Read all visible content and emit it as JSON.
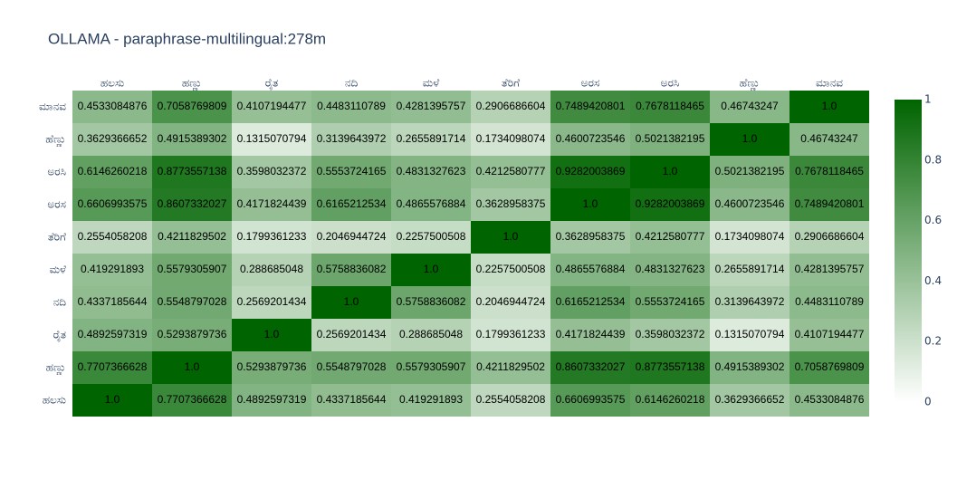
{
  "chart_data": {
    "type": "heatmap",
    "title": "OLLAMA - paraphrase-multilingual:278m",
    "x": [
      "ಹಲಸು",
      "ಹಣ್ಣು",
      "ರೈತ",
      "ನದಿ",
      "ಮಳೆ",
      "ತೆರಿಗೆ",
      "ಅರಸ",
      "ಅರಸಿ",
      "ಹೆಣ್ಣು",
      "ಮಾನವ"
    ],
    "y": [
      "ಹಲಸು",
      "ಹಣ್ಣು",
      "ರೈತ",
      "ನದಿ",
      "ಮಳೆ",
      "ತೆರಿಗೆ",
      "ಅರಸ",
      "ಅರಸಿ",
      "ಹೆಣ್ಣು",
      "ಮಾನವ"
    ],
    "z": [
      [
        1,
        0.7707366628,
        0.4892597319,
        0.4337185644,
        0.419291893,
        0.2554058208,
        0.6606993575,
        0.6146260218,
        0.3629366652,
        0.4533084876
      ],
      [
        0.7707366628,
        1,
        0.5293879736,
        0.5548797028,
        0.5579305907,
        0.4211829502,
        0.8607332027,
        0.8773557138,
        0.4915389302,
        0.7058769809
      ],
      [
        0.4892597319,
        0.5293879736,
        1,
        0.2569201434,
        0.288685048,
        0.1799361233,
        0.4171824439,
        0.3598032372,
        0.1315070794,
        0.4107194477
      ],
      [
        0.4337185644,
        0.5548797028,
        0.2569201434,
        1,
        0.5758836082,
        0.2046944724,
        0.6165212534,
        0.5553724165,
        0.3139643972,
        0.4483110789
      ],
      [
        0.419291893,
        0.5579305907,
        0.288685048,
        0.5758836082,
        1,
        0.2257500508,
        0.4865576884,
        0.4831327623,
        0.2655891714,
        0.4281395757
      ],
      [
        0.2554058208,
        0.4211829502,
        0.1799361233,
        0.2046944724,
        0.2257500508,
        1,
        0.3628958375,
        0.4212580777,
        0.1734098074,
        0.2906686604
      ],
      [
        0.6606993575,
        0.8607332027,
        0.4171824439,
        0.6165212534,
        0.4865576884,
        0.3628958375,
        1,
        0.9282003869,
        0.4600723546,
        0.7489420801
      ],
      [
        0.6146260218,
        0.8773557138,
        0.3598032372,
        0.5553724165,
        0.4831327623,
        0.4212580777,
        0.9282003869,
        1,
        0.5021382195,
        0.7678118465
      ],
      [
        0.3629366652,
        0.4915389302,
        0.1315070794,
        0.3139643972,
        0.2655891714,
        0.1734098074,
        0.4600723546,
        0.5021382195,
        1,
        0.46743247
      ],
      [
        0.4533084876,
        0.7058769809,
        0.4107194477,
        0.4483110789,
        0.4281395757,
        0.2906686604,
        0.7489420801,
        0.7678118465,
        0.46743247,
        1
      ]
    ],
    "value_labels": [
      [
        "1.0",
        "0.7707366628",
        "0.4892597319",
        "0.4337185644",
        "0.419291893",
        "0.2554058208",
        "0.6606993575",
        "0.6146260218",
        "0.3629366652",
        "0.4533084876"
      ],
      [
        "0.7707366628",
        "1.0",
        "0.5293879736",
        "0.5548797028",
        "0.5579305907",
        "0.4211829502",
        "0.8607332027",
        "0.8773557138",
        "0.4915389302",
        "0.7058769809"
      ],
      [
        "0.4892597319",
        "0.5293879736",
        "1.0",
        "0.2569201434",
        "0.288685048",
        "0.1799361233",
        "0.4171824439",
        "0.3598032372",
        "0.1315070794",
        "0.4107194477"
      ],
      [
        "0.4337185644",
        "0.5548797028",
        "0.2569201434",
        "1.0",
        "0.5758836082",
        "0.2046944724",
        "0.6165212534",
        "0.5553724165",
        "0.3139643972",
        "0.4483110789"
      ],
      [
        "0.419291893",
        "0.5579305907",
        "0.288685048",
        "0.5758836082",
        "1.0",
        "0.2257500508",
        "0.4865576884",
        "0.4831327623",
        "0.2655891714",
        "0.4281395757"
      ],
      [
        "0.2554058208",
        "0.4211829502",
        "0.1799361233",
        "0.2046944724",
        "0.2257500508",
        "1.0",
        "0.3628958375",
        "0.4212580777",
        "0.1734098074",
        "0.2906686604"
      ],
      [
        "0.6606993575",
        "0.8607332027",
        "0.4171824439",
        "0.6165212534",
        "0.4865576884",
        "0.3628958375",
        "1.0",
        "0.9282003869",
        "0.4600723546",
        "0.7489420801"
      ],
      [
        "0.6146260218",
        "0.8773557138",
        "0.3598032372",
        "0.5553724165",
        "0.4831327623",
        "0.4212580777",
        "0.9282003869",
        "1.0",
        "0.5021382195",
        "0.7678118465"
      ],
      [
        "0.3629366652",
        "0.4915389302",
        "0.1315070794",
        "0.3139643972",
        "0.2655891714",
        "0.1734098074",
        "0.4600723546",
        "0.5021382195",
        "1.0",
        "0.46743247"
      ],
      [
        "0.4533084876",
        "0.7058769809",
        "0.4107194477",
        "0.4483110789",
        "0.4281395757",
        "0.2906686604",
        "0.7489420801",
        "0.7678118465",
        "0.46743247",
        "1.0"
      ]
    ],
    "colorscale": [
      [
        0,
        "#ffffff"
      ],
      [
        1,
        "#006400"
      ]
    ],
    "zlim": [
      0,
      1
    ],
    "zticks": [
      0,
      0.2,
      0.4,
      0.6,
      0.8,
      1
    ]
  }
}
